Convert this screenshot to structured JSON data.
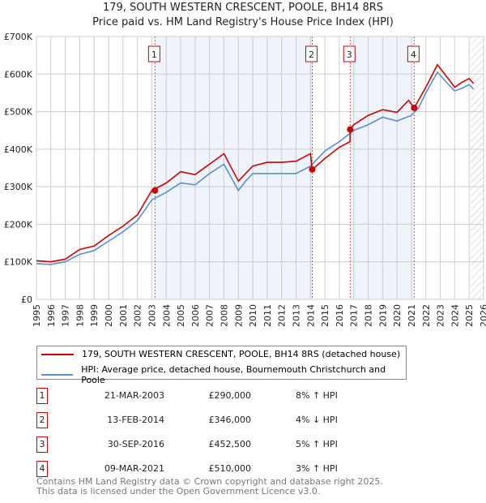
{
  "chart_data": {
    "type": "line",
    "title": "179, SOUTH WESTERN CRESCENT, POOLE, BH14 8RS",
    "subtitle": "Price paid vs. HM Land Registry's House Price Index (HPI)",
    "xlim": [
      1995,
      2026
    ],
    "ylim": [
      0,
      700000
    ],
    "x_ticks": [
      "1995",
      "1996",
      "1997",
      "1998",
      "1999",
      "2000",
      "2001",
      "2002",
      "2003",
      "2004",
      "2005",
      "2006",
      "2007",
      "2008",
      "2009",
      "2010",
      "2011",
      "2012",
      "2013",
      "2014",
      "2015",
      "2016",
      "2017",
      "2018",
      "2019",
      "2020",
      "2021",
      "2022",
      "2023",
      "2024",
      "2025",
      "2026"
    ],
    "y_ticks": [
      {
        "v": 0,
        "label": "£0"
      },
      {
        "v": 100000,
        "label": "£100K"
      },
      {
        "v": 200000,
        "label": "£200K"
      },
      {
        "v": 300000,
        "label": "£300K"
      },
      {
        "v": 400000,
        "label": "£400K"
      },
      {
        "v": 500000,
        "label": "£500K"
      },
      {
        "v": 600000,
        "label": "£600K"
      },
      {
        "v": 700000,
        "label": "£700K"
      }
    ],
    "series": [
      {
        "name": "179, SOUTH WESTERN CRESCENT, POOLE, BH14 8RS (detached house)",
        "color": "#cc0000",
        "x": [
          1995,
          1996,
          1997,
          1998,
          1999,
          2000,
          2001,
          2002,
          2003,
          2004,
          2005,
          2006,
          2007,
          2008,
          2009,
          2010,
          2011,
          2012,
          2013,
          2014.0,
          2014.12,
          2015,
          2016,
          2016.74,
          2016.75,
          2017,
          2018,
          2019,
          2020,
          2020.8,
          2021.19,
          2022,
          2022.8,
          2023.5,
          2024,
          2024.5,
          2025,
          2025.3
        ],
        "y": [
          103000,
          100000,
          107000,
          133000,
          142000,
          170000,
          195000,
          225000,
          290000,
          310000,
          340000,
          332000,
          360000,
          388000,
          315000,
          355000,
          365000,
          365000,
          368000,
          388000,
          346000,
          375000,
          405000,
          420000,
          452500,
          465000,
          490000,
          505000,
          498000,
          530000,
          510000,
          565000,
          625000,
          590000,
          565000,
          578000,
          588000,
          575000
        ]
      },
      {
        "name": "HPI: Average price, detached house, Bournemouth Christchurch and Poole",
        "color": "#5b8fd0",
        "x": [
          1995,
          1996,
          1997,
          1998,
          1999,
          2000,
          2001,
          2002,
          2003,
          2004,
          2005,
          2006,
          2007,
          2008,
          2009,
          2009.5,
          2010,
          2011,
          2012,
          2013,
          2014,
          2015,
          2016,
          2017,
          2018,
          2019,
          2020,
          2021,
          2021.5,
          2022,
          2022.8,
          2023.5,
          2024,
          2024.5,
          2025,
          2025.3
        ],
        "y": [
          95000,
          93000,
          100000,
          120000,
          130000,
          155000,
          180000,
          210000,
          265000,
          285000,
          310000,
          305000,
          335000,
          360000,
          290000,
          315000,
          335000,
          335000,
          335000,
          335000,
          355000,
          395000,
          420000,
          450000,
          465000,
          485000,
          475000,
          490000,
          510000,
          550000,
          605000,
          575000,
          555000,
          562000,
          572000,
          560000
        ]
      }
    ],
    "sales": [
      {
        "id": "1",
        "x": 2003.22,
        "date": "21-MAR-2003",
        "price": 290000,
        "price_label": "£290,000",
        "hpi": "8% ↑ HPI"
      },
      {
        "id": "2",
        "x": 2014.12,
        "date": "13-FEB-2014",
        "price": 346000,
        "price_label": "£346,000",
        "hpi": "4% ↓ HPI"
      },
      {
        "id": "3",
        "x": 2016.75,
        "date": "30-SEP-2016",
        "price": 452500,
        "price_label": "£452,500",
        "hpi": "5% ↑ HPI"
      },
      {
        "id": "4",
        "x": 2021.19,
        "date": "09-MAR-2021",
        "price": 510000,
        "price_label": "£510,000",
        "hpi": "3% ↑ HPI"
      }
    ],
    "forecast_start": 2025.1
  },
  "footer": {
    "line1": "Contains HM Land Registry data © Crown copyright and database right 2025.",
    "line2": "This data is licensed under the Open Government Licence v3.0."
  }
}
